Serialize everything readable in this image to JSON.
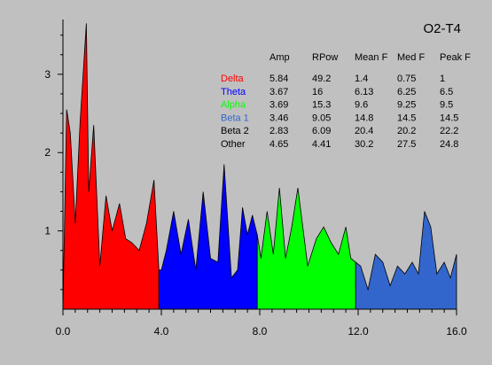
{
  "chart_data": {
    "type": "area",
    "title": "O2-T4",
    "xlabel": "",
    "ylabel": "",
    "xlim": [
      0,
      16
    ],
    "ylim": [
      0,
      3.7
    ],
    "xticks": [
      0,
      4,
      8,
      12,
      16
    ],
    "xtick_labels": [
      "0.0",
      "4.0",
      "8.0",
      "12.0",
      "16.0"
    ],
    "yticks": [
      1,
      2,
      3
    ],
    "ytick_labels": [
      "1",
      "2",
      "3"
    ],
    "grid": false,
    "bands": [
      {
        "name": "Delta",
        "color": "#ff0000",
        "xrange": [
          0,
          3.9
        ],
        "x": [
          0,
          0.15,
          0.3,
          0.5,
          0.7,
          0.95,
          1.05,
          1.25,
          1.5,
          1.75,
          2.0,
          2.3,
          2.55,
          2.8,
          3.1,
          3.4,
          3.7,
          3.9
        ],
        "y": [
          0.0,
          2.55,
          2.25,
          1.1,
          2.4,
          3.65,
          1.5,
          2.35,
          0.55,
          1.45,
          1.0,
          1.35,
          0.9,
          0.85,
          0.75,
          1.1,
          1.65,
          0.5
        ]
      },
      {
        "name": "Theta",
        "color": "#0000ff",
        "xrange": [
          3.9,
          7.9
        ],
        "x": [
          3.9,
          4.0,
          4.2,
          4.5,
          4.8,
          5.1,
          5.4,
          5.7,
          6.0,
          6.3,
          6.55,
          6.85,
          7.1,
          7.3,
          7.5,
          7.7,
          7.9
        ],
        "y": [
          0.5,
          0.5,
          0.75,
          1.25,
          0.7,
          1.15,
          0.5,
          1.5,
          0.65,
          0.6,
          1.85,
          0.4,
          0.5,
          1.3,
          0.95,
          1.2,
          0.95
        ]
      },
      {
        "name": "Alpha",
        "color": "#00ff00",
        "xrange": [
          7.9,
          11.9
        ],
        "x": [
          7.9,
          8.05,
          8.3,
          8.55,
          8.8,
          9.05,
          9.3,
          9.55,
          9.95,
          10.3,
          10.6,
          10.9,
          11.2,
          11.5,
          11.7,
          11.9
        ],
        "y": [
          0.95,
          0.65,
          1.25,
          0.7,
          1.55,
          0.65,
          1.05,
          1.55,
          0.55,
          0.9,
          1.05,
          0.85,
          0.7,
          1.05,
          0.65,
          0.6
        ]
      },
      {
        "name": "Beta 1",
        "color": "#3366cc",
        "xrange": [
          11.9,
          16.0
        ],
        "x": [
          11.9,
          12.1,
          12.4,
          12.7,
          13.0,
          13.3,
          13.6,
          13.9,
          14.2,
          14.45,
          14.7,
          14.95,
          15.2,
          15.5,
          15.75,
          16.0
        ],
        "y": [
          0.6,
          0.55,
          0.25,
          0.7,
          0.6,
          0.3,
          0.55,
          0.45,
          0.6,
          0.45,
          1.25,
          1.05,
          0.45,
          0.6,
          0.4,
          0.7
        ]
      }
    ],
    "table": {
      "headers": [
        "",
        "Amp",
        "RPow",
        "Mean F",
        "Med F",
        "Peak F"
      ],
      "rows": [
        {
          "label": "Delta",
          "color": "#ff0000",
          "values": [
            "5.84",
            "49.2",
            "1.4",
            "0.75",
            "1"
          ]
        },
        {
          "label": "Theta",
          "color": "#0000ff",
          "values": [
            "3.67",
            "16",
            "6.13",
            "6.25",
            "6.5"
          ]
        },
        {
          "label": "Alpha",
          "color": "#00ff00",
          "values": [
            "3.69",
            "15.3",
            "9.6",
            "9.25",
            "9.5"
          ]
        },
        {
          "label": "Beta 1",
          "color": "#3366cc",
          "values": [
            "3.46",
            "9.05",
            "14.8",
            "14.5",
            "14.5"
          ]
        },
        {
          "label": "Beta 2",
          "color": "#000000",
          "values": [
            "2.83",
            "6.09",
            "20.4",
            "20.2",
            "22.2"
          ]
        },
        {
          "label": "Other",
          "color": "#000000",
          "values": [
            "4.65",
            "4.41",
            "30.2",
            "27.5",
            "24.8"
          ]
        }
      ]
    }
  }
}
